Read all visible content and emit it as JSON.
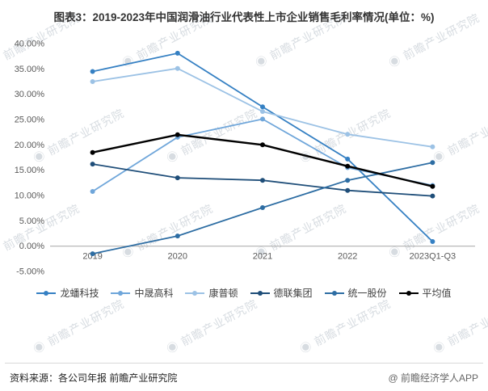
{
  "title": "图表3：2019-2023年中国润滑油行业代表性上市企业销售毛利率情况(单位：%)",
  "watermark": {
    "logo": "◉",
    "text": "前瞻产业研究院"
  },
  "footer": {
    "source": "资料来源：各公司年报 前瞻产业研究院",
    "credit": "@ 前瞻经济学人APP"
  },
  "chart_data": {
    "type": "line",
    "title": "图表3：2019-2023年中国润滑油行业代表性上市企业销售毛利率情况(单位：%)",
    "xlabel": "",
    "ylabel": "",
    "categories": [
      "2019",
      "2020",
      "2021",
      "2022",
      "2023Q1-Q3"
    ],
    "series": [
      {
        "key": "longpan",
        "name": "龙蟠科技",
        "color": "#3580c3",
        "values": [
          34.5,
          38.1,
          27.5,
          17.2,
          0.9
        ]
      },
      {
        "key": "zhongsheng",
        "name": "中晟高科",
        "color": "#6fa6da",
        "values": [
          10.8,
          21.5,
          25.1,
          15.5,
          12.0
        ]
      },
      {
        "key": "copton",
        "name": "康普顿",
        "color": "#9cc2e5",
        "values": [
          32.5,
          35.1,
          26.6,
          22.1,
          19.6
        ]
      },
      {
        "key": "delian",
        "name": "德联集团",
        "color": "#1f4e79",
        "values": [
          16.2,
          13.5,
          13.0,
          11.0,
          9.9
        ]
      },
      {
        "key": "tongyi",
        "name": "统一股份",
        "color": "#2d6da3",
        "values": [
          -1.5,
          2.0,
          7.6,
          13.0,
          16.5
        ]
      },
      {
        "key": "average",
        "name": "平均值",
        "color": "#000000",
        "values": [
          18.5,
          22.0,
          20.0,
          15.8,
          11.8
        ]
      }
    ],
    "ylim": [
      -5,
      40
    ],
    "ytick_step": 5,
    "ytick_format": "percent2",
    "grid": false,
    "legend_position": "bottom"
  }
}
